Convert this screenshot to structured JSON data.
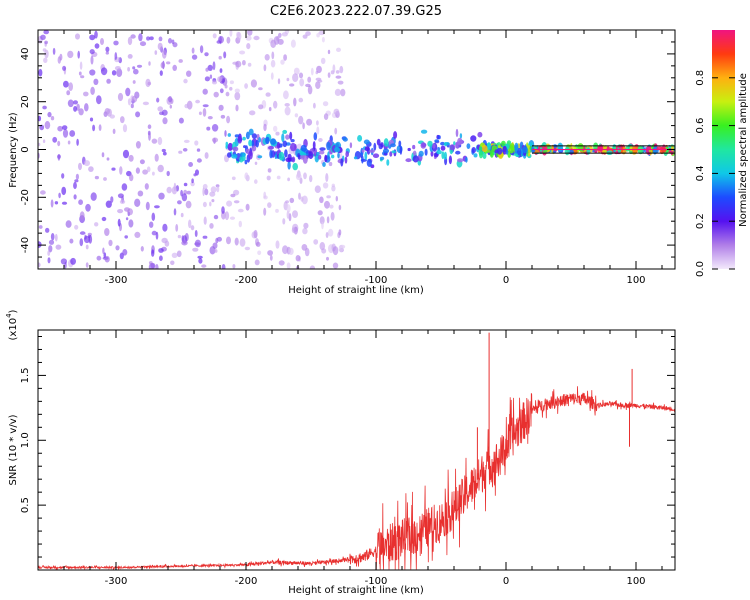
{
  "page": {
    "title": "C2E6.2023.222.07.39.G25"
  },
  "chart_data": [
    {
      "type": "heatmap",
      "xlabel": "Height of straight line (km)",
      "ylabel": "Frequency (Hz)",
      "xlim": [
        -360,
        130
      ],
      "ylim": [
        -50,
        50
      ],
      "xticks": [
        -300,
        -200,
        -100,
        0,
        100
      ],
      "yticks": [
        -40,
        -20,
        0,
        20,
        40
      ],
      "ytick_labels": [
        "-40",
        "-20",
        "0",
        "20",
        "40"
      ],
      "colorbar": {
        "label": "Normalized spectral amplitude",
        "range": [
          0.0,
          1.0
        ],
        "ticks": [
          0.0,
          0.2,
          0.4,
          0.6,
          0.8
        ],
        "tick_labels": [
          "0.0",
          "0.2",
          "0.4",
          "0.6",
          "0.8"
        ]
      },
      "regions": [
        {
          "x_range": [
            -360,
            -215
          ],
          "freq_halfwidth": 50,
          "amplitude": 0.15,
          "note": "scattered noise"
        },
        {
          "x_range": [
            -215,
            -125
          ],
          "freq_halfwidth": 50,
          "amplitude": 0.08,
          "note": "faint noise"
        },
        {
          "x_range": [
            -215,
            -130
          ],
          "freq_halfwidth": 8,
          "amplitude": 0.35
        },
        {
          "x_range": [
            -130,
            -20
          ],
          "freq_halfwidth": 8,
          "amplitude": 0.35
        },
        {
          "x_range": [
            -20,
            20
          ],
          "freq_halfwidth": 3,
          "amplitude": 0.6
        },
        {
          "x_range": [
            20,
            130
          ],
          "freq_halfwidth": 1.5,
          "amplitude": 0.9
        }
      ],
      "lines": {
        "center": 0,
        "upper": 1.5,
        "lower": -1.5
      }
    },
    {
      "type": "line",
      "xlabel": "Height of straight line (km)",
      "ylabel": "SNR (10 * v/v)",
      "multiplier_label": "(x10",
      "multiplier_exp": "4",
      "multiplier_close": ")",
      "xlim": [
        -360,
        130
      ],
      "ylim": [
        0.0,
        1.85
      ],
      "xticks": [
        -300,
        -200,
        -100,
        0,
        100
      ],
      "yticks": [
        0.5,
        1.0,
        1.5
      ],
      "ytick_labels": [
        "0.5",
        "1.0",
        "1.5"
      ],
      "color": "#e8302f",
      "series": [
        {
          "x": [
            -360,
            -300,
            -250,
            -200,
            -180,
            -150,
            -130,
            -110,
            -100,
            -90,
            -80,
            -70,
            -60,
            -50,
            -40,
            -30,
            -20,
            -15,
            -10,
            -5,
            0,
            10,
            20,
            30,
            40,
            50,
            60,
            70,
            80,
            90,
            100,
            110,
            130
          ],
          "values": [
            0.02,
            0.02,
            0.03,
            0.04,
            0.06,
            0.05,
            0.07,
            0.1,
            0.15,
            0.2,
            0.24,
            0.27,
            0.33,
            0.38,
            0.47,
            0.6,
            0.72,
            0.8,
            0.82,
            0.86,
            0.95,
            1.1,
            1.23,
            1.28,
            1.3,
            1.32,
            1.32,
            1.27,
            1.28,
            1.27,
            1.27,
            1.26,
            1.24
          ]
        }
      ],
      "spikes": [
        {
          "x": -13,
          "y": 1.83
        },
        {
          "x": -22,
          "y": 1.1
        },
        {
          "x": 97,
          "y": 1.55
        },
        {
          "x": 95,
          "y": 0.95
        }
      ]
    }
  ]
}
